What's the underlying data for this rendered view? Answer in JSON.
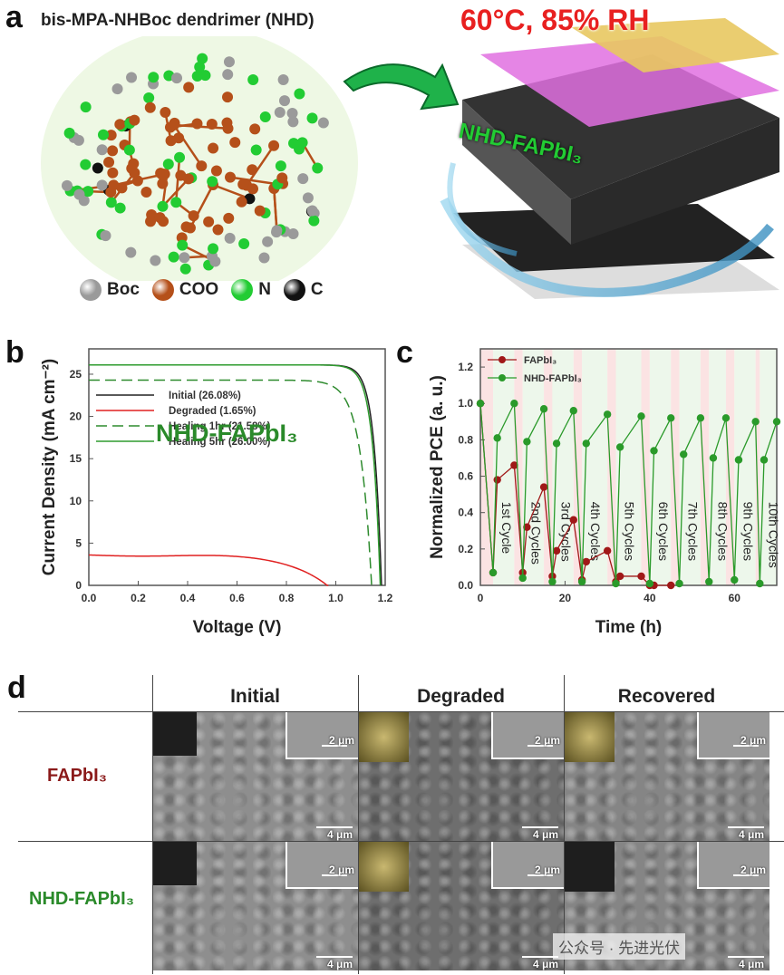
{
  "panel_a": {
    "label": "a",
    "title": "bis-MPA-NHBoc dendrimer (NHD)",
    "condition": "60°C, 85% RH",
    "device_label": "NHD-FAPbI₃",
    "legend": [
      {
        "name": "Boc",
        "color": "#9a9a9a"
      },
      {
        "name": "COO",
        "color": "#b5501a"
      },
      {
        "name": "N",
        "color": "#22cc33"
      },
      {
        "name": "C",
        "color": "#111111"
      }
    ]
  },
  "panel_b": {
    "label": "b",
    "inset_title": "NHD-FAPbI₃"
  },
  "panel_c": {
    "label": "c"
  },
  "panel_d": {
    "label": "d",
    "columns": [
      "Initial",
      "Degraded",
      "Recovered"
    ],
    "rows": [
      "FAPbI₃",
      "NHD-FAPbI₃"
    ],
    "inset_scale": "2 μm",
    "main_scale": "4 μm"
  },
  "watermark": "公众号 · 先进光伏",
  "chart_data": [
    {
      "type": "line",
      "title": "",
      "xlabel": "Voltage (V)",
      "ylabel": "Current Density (mA cm⁻²)",
      "xlim": [
        0,
        1.2
      ],
      "ylim": [
        0,
        28
      ],
      "xticks": [
        "0.0",
        "0.2",
        "0.4",
        "0.6",
        "0.8",
        "1.0",
        "1.2"
      ],
      "yticks": [
        "0",
        "5",
        "10",
        "15",
        "20",
        "25"
      ],
      "legend_position": "center-left",
      "series": [
        {
          "name": "Initial (26.08%)",
          "color": "#222222",
          "style": "solid",
          "jsc": 26.1,
          "voc": 1.185
        },
        {
          "name": "Degraded (1.65%)",
          "color": "#e02020",
          "style": "solid",
          "jsc": 3.6,
          "voc": 0.97
        },
        {
          "name": "Healing 1hr (21.58%)",
          "color": "#2e8b2e",
          "style": "dashed",
          "jsc": 24.3,
          "voc": 1.145
        },
        {
          "name": "Healing 5hr (26.00%)",
          "color": "#2e9b2e",
          "style": "solid",
          "jsc": 26.1,
          "voc": 1.18
        }
      ]
    },
    {
      "type": "line",
      "title": "",
      "xlabel": "Time (h)",
      "ylabel": "Normalized PCE (a. u.)",
      "xlim": [
        0,
        70
      ],
      "ylim": [
        0,
        1.3
      ],
      "xticks": [
        "0",
        "20",
        "40",
        "60"
      ],
      "yticks": [
        "0.0",
        "0.2",
        "0.4",
        "0.6",
        "0.8",
        "1.0",
        "1.2"
      ],
      "legend_position": "top-left",
      "annotations": [
        "1st Cycle",
        "2nd Cycles",
        "3rd Cycles",
        "4th Cycles",
        "5th Cycles",
        "6th Cycles",
        "7th Cycles",
        "8th Cycles",
        "9th Cycles",
        "10th Cycles"
      ],
      "series": [
        {
          "name": "FAPbI₃",
          "color": "#a01818",
          "x": [
            0,
            3,
            4,
            8,
            10,
            11,
            15,
            17,
            18,
            22,
            24,
            25,
            30,
            32,
            33,
            38,
            40,
            41,
            45
          ],
          "y": [
            1.0,
            0.07,
            0.58,
            0.66,
            0.07,
            0.32,
            0.54,
            0.05,
            0.19,
            0.36,
            0.03,
            0.13,
            0.19,
            0.02,
            0.05,
            0.05,
            0.0,
            0.0,
            0.0
          ]
        },
        {
          "name": "NHD-FAPbI₃",
          "color": "#2a9a2a",
          "x": [
            0,
            3,
            4,
            8,
            10,
            11,
            15,
            17,
            18,
            22,
            24,
            25,
            30,
            32,
            33,
            38,
            40,
            41,
            45,
            47,
            48,
            52,
            54,
            55,
            58,
            60,
            61,
            65,
            66,
            67,
            70
          ],
          "y": [
            1.0,
            0.07,
            0.81,
            1.0,
            0.04,
            0.79,
            0.97,
            0.02,
            0.78,
            0.96,
            0.02,
            0.78,
            0.94,
            0.01,
            0.76,
            0.93,
            0.01,
            0.74,
            0.92,
            0.01,
            0.72,
            0.92,
            0.02,
            0.7,
            0.92,
            0.03,
            0.69,
            0.9,
            0.01,
            0.69,
            0.9
          ]
        }
      ]
    }
  ]
}
